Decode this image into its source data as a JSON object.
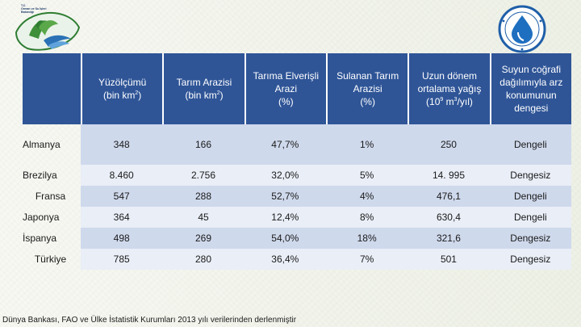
{
  "logos": {
    "left_ministry_line1": "T.C.",
    "left_ministry_line2": "Orman ve Su İşleri",
    "left_ministry_line3": "Bakanlığı"
  },
  "table": {
    "headers": [
      {
        "line1": "Yüzölçümü",
        "line2": "(bin km",
        "sup": "2",
        "line2_end": ")"
      },
      {
        "line1": "Tarım Arazisi",
        "line2": "(bin km",
        "sup": "2",
        "line2_end": ")"
      },
      {
        "line1": "Tarıma Elverişli",
        "line2": "Arazi",
        "line3": "(%)"
      },
      {
        "line1": "Sulanan Tarım",
        "line2": "Arazisi",
        "line3": "(%)"
      },
      {
        "line1": "Uzun dönem",
        "line2": "ortalama yağış",
        "line3a": "(10",
        "sup1": "9",
        "line3b": " m",
        "sup2": "3",
        "line3c": "/yıl)"
      },
      {
        "line1": "Suyun coğrafi",
        "line2": "dağılımıyla arz",
        "line3": "konumunun",
        "line4": "dengesi"
      }
    ],
    "rows": [
      {
        "country": "Almanya",
        "area": "348",
        "agri": "166",
        "arable": "47,7%",
        "irrigated": "1%",
        "rain": "250",
        "balance": "Dengeli"
      },
      {
        "country": "Brezilya",
        "area": "8.460",
        "agri": "2.756",
        "arable": "32,0%",
        "irrigated": "5%",
        "rain": "14. 995",
        "balance": "Dengesiz"
      },
      {
        "country": "Fransa",
        "area": "547",
        "agri": "288",
        "arable": "52,7%",
        "irrigated": "4%",
        "rain": "476,1",
        "balance": "Dengeli"
      },
      {
        "country": "Japonya",
        "area": "364",
        "agri": "45",
        "arable": "12,4%",
        "irrigated": "8%",
        "rain": "630,4",
        "balance": "Dengeli"
      },
      {
        "country": "İspanya",
        "area": "498",
        "agri": "269",
        "arable": "54,0%",
        "irrigated": "18%",
        "rain": "321,6",
        "balance": "Dengesiz"
      },
      {
        "country": "Türkiye",
        "area": "785",
        "agri": "280",
        "arable": "36,4%",
        "irrigated": "7%",
        "rain": "501",
        "balance": "Dengesiz"
      }
    ]
  },
  "footer": "Dünya Bankası, FAO ve Ülke İstatistik Kurumları 2013 yılı verilerinden derlenmiştir",
  "colors": {
    "header_bg": "#2f5597",
    "row_dark": "#cfd9ec",
    "row_light": "#e9eef7"
  }
}
